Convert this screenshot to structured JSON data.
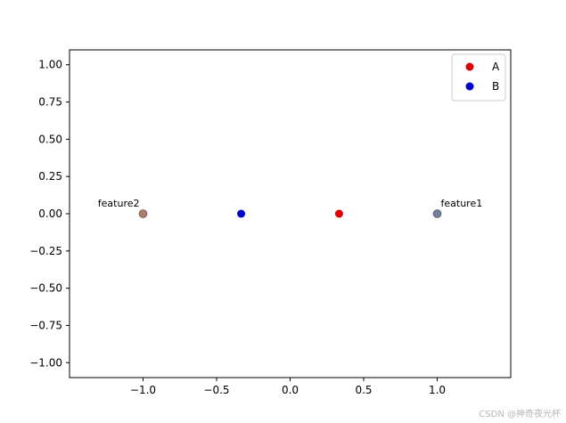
{
  "chart_data": {
    "type": "scatter",
    "title": "",
    "xlabel": "",
    "ylabel": "",
    "xlim": [
      -1.5,
      1.5
    ],
    "ylim": [
      -1.1,
      1.1
    ],
    "grid": false,
    "x_ticks": [
      -1.0,
      -0.5,
      0.0,
      0.5,
      1.0
    ],
    "x_tick_labels": [
      "−1.0",
      "−0.5",
      "0.0",
      "0.5",
      "1.0"
    ],
    "y_ticks": [
      1.0,
      0.75,
      0.5,
      0.25,
      0.0,
      -0.25,
      -0.5,
      -0.75,
      -1.0
    ],
    "y_tick_labels": [
      "1.00",
      "0.75",
      "0.50",
      "0.25",
      "0.00",
      "−0.25",
      "−0.50",
      "−0.75",
      "−1.00"
    ],
    "series": [
      {
        "name": "A",
        "color": "#dd0000",
        "points": [
          {
            "x": 0.333,
            "y": 0.0
          }
        ]
      },
      {
        "name": "B",
        "color": "#0000cc",
        "points": [
          {
            "x": -0.333,
            "y": 0.0
          }
        ]
      }
    ],
    "anchors": [
      {
        "label": "feature1",
        "x": 1.0,
        "y": 0.0,
        "color": "#6e7fa3"
      },
      {
        "label": "feature2",
        "x": -1.0,
        "y": 0.0,
        "color": "#b07a6e"
      }
    ],
    "legend": {
      "position": "top-right"
    }
  },
  "watermark": "CSDN @神奇夜光杯"
}
